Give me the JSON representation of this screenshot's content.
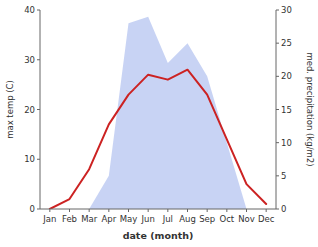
{
  "chart_data": {
    "type": "line",
    "categories": [
      "Jan",
      "Feb",
      "Mar",
      "Apr",
      "May",
      "Jun",
      "Jul",
      "Aug",
      "Sep",
      "Oct",
      "Nov",
      "Dec"
    ],
    "xlabel": "date (month)",
    "ylabel": "max temp (C)",
    "y2label": "med. precipitation (kg/m2)",
    "series": [
      {
        "type": "area",
        "axis": "y2",
        "color": "#aabbee",
        "values": [
          0,
          0,
          0,
          5,
          28,
          29,
          22,
          25,
          20,
          10,
          0,
          0
        ]
      },
      {
        "type": "line",
        "color": "#cc2222",
        "values": [
          0,
          2,
          8,
          17,
          23,
          27,
          26,
          28,
          23,
          14,
          5,
          1
        ]
      }
    ],
    "ylim": [
      0,
      40
    ],
    "yticks": [
      0,
      10,
      20,
      30,
      40
    ],
    "y2lim": [
      0,
      30
    ],
    "y2ticks": [
      0,
      5,
      10,
      15,
      20,
      25,
      30
    ],
    "grid": false
  }
}
